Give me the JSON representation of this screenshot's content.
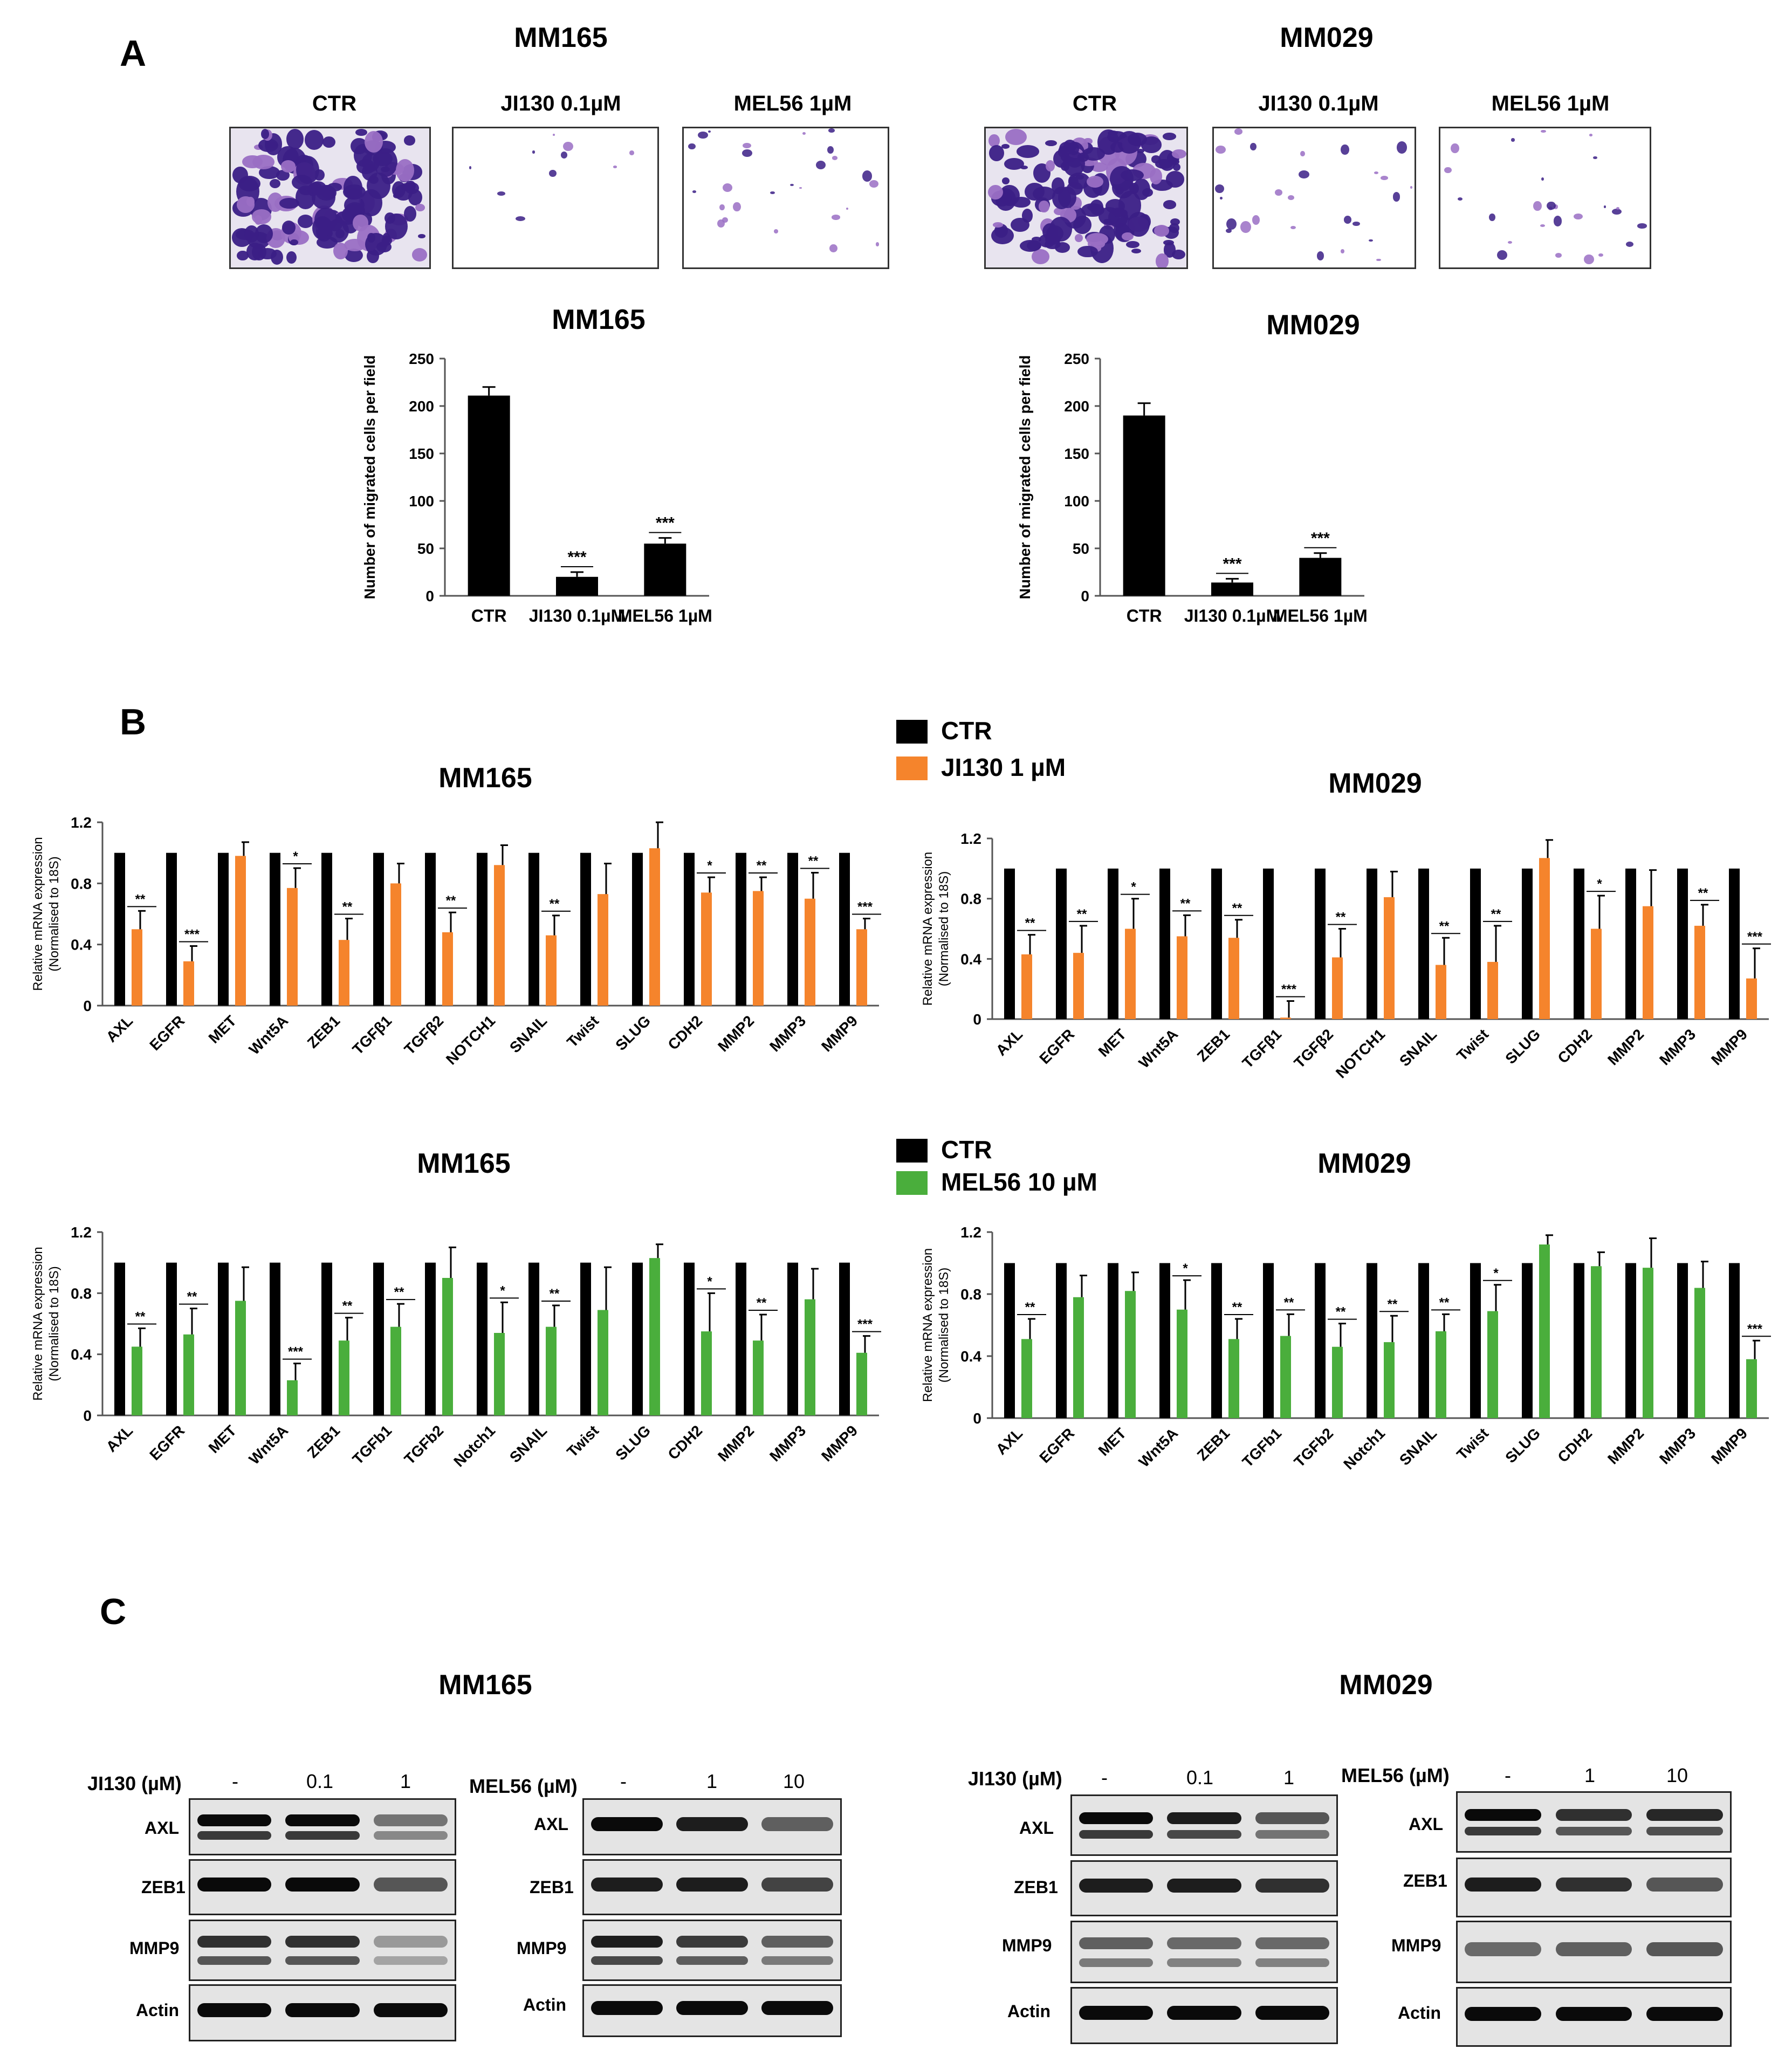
{
  "panel_letters": [
    "A",
    "B",
    "C"
  ],
  "colors": {
    "ctr": "#000000",
    "ji130": "#f5842c",
    "mel56": "#4aae3c",
    "stain": "#3b1f86",
    "stain_light": "#9a6fc4"
  },
  "panel_a": {
    "left": {
      "title": "MM165",
      "images": [
        "CTR",
        "JI130 0.1µM",
        "MEL56 1µM"
      ]
    },
    "right": {
      "title": "MM029",
      "images": [
        "CTR",
        "JI130 0.1µM",
        "MEL56 1µM"
      ]
    }
  },
  "panel_b": {
    "legend1": {
      "ctr": "CTR",
      "treat": "JI130 1 µM"
    },
    "legend2": {
      "ctr": "CTR",
      "treat": "MEL56 10 µM"
    }
  },
  "panel_c": {
    "left": {
      "title": "MM165"
    },
    "right": {
      "title": "MM029"
    },
    "row_labels": [
      "AXL",
      "ZEB1",
      "MMP9",
      "Actin"
    ],
    "ji130_label": "JI130 (µM)",
    "mel56_label": "MEL56 (µM)",
    "ji130_doses": [
      "-",
      "0.1",
      "1"
    ],
    "mel56_doses": [
      "-",
      "1",
      "10"
    ]
  },
  "chart_data": [
    {
      "id": "A1",
      "type": "bar",
      "title": "MM165",
      "categories": [
        "CTR",
        "JI130 0.1µM",
        "MEL56 1µM"
      ],
      "values": [
        211,
        20,
        55
      ],
      "errors": [
        9,
        5,
        6
      ],
      "sig": [
        "",
        "***",
        "***"
      ],
      "ylabel": "Number of migrated cells per field",
      "ylim": [
        0,
        250
      ],
      "yticks": [
        "0",
        "50",
        "100",
        "150",
        "200",
        "250"
      ]
    },
    {
      "id": "A2",
      "type": "bar",
      "title": "MM029",
      "categories": [
        "CTR",
        "JI130 0.1µM",
        "MEL56 1µM"
      ],
      "values": [
        190,
        14,
        40
      ],
      "errors": [
        13,
        4,
        5
      ],
      "sig": [
        "",
        "***",
        "***"
      ],
      "ylabel": "Number of migrated cells per field",
      "ylim": [
        0,
        250
      ],
      "yticks": [
        "0",
        "50",
        "100",
        "150",
        "200",
        "250"
      ]
    },
    {
      "id": "B1",
      "type": "bar",
      "title": "MM165",
      "categories": [
        "AXL",
        "EGFR",
        "MET",
        "Wnt5A",
        "ZEB1",
        "TGFβ1",
        "TGFβ2",
        "NOTCH1",
        "SNAIL",
        "Twist",
        "SLUG",
        "CDH2",
        "MMP2",
        "MMP3",
        "MMP9"
      ],
      "series": [
        {
          "name": "CTR",
          "values": [
            1,
            1,
            1,
            1,
            1,
            1,
            1,
            1,
            1,
            1,
            1,
            1,
            1,
            1,
            1
          ]
        },
        {
          "name": "JI130 1 µM",
          "values": [
            0.5,
            0.29,
            0.98,
            0.77,
            0.43,
            0.8,
            0.48,
            0.92,
            0.46,
            0.73,
            1.03,
            0.74,
            0.75,
            0.7,
            0.5
          ],
          "errors": [
            0.12,
            0.1,
            0.09,
            0.13,
            0.14,
            0.13,
            0.13,
            0.13,
            0.13,
            0.2,
            0.17,
            0.1,
            0.09,
            0.17,
            0.07
          ]
        }
      ],
      "sig": [
        "**",
        "***",
        "",
        "*",
        "**",
        "",
        "**",
        "",
        "**",
        "",
        "",
        "*",
        "**",
        "**",
        "***"
      ],
      "ylabel": "Relative mRNA expression (Normalised to 18S)",
      "ylim": [
        0,
        1.2
      ],
      "yticks": [
        "0",
        "0.4",
        "0.8",
        "1.2"
      ]
    },
    {
      "id": "B2",
      "type": "bar",
      "title": "MM029",
      "categories": [
        "AXL",
        "EGFR",
        "MET",
        "Wnt5A",
        "ZEB1",
        "TGFβ1",
        "TGFβ2",
        "NOTCH1",
        "SNAIL",
        "Twist",
        "SLUG",
        "CDH2",
        "MMP2",
        "MMP3",
        "MMP9"
      ],
      "series": [
        {
          "name": "CTR",
          "values": [
            1,
            1,
            1,
            1,
            1,
            1,
            1,
            1,
            1,
            1,
            1,
            1,
            1,
            1,
            1
          ]
        },
        {
          "name": "JI130 1 µM",
          "values": [
            0.43,
            0.44,
            0.6,
            0.55,
            0.54,
            0.01,
            0.41,
            0.81,
            0.36,
            0.38,
            1.07,
            0.6,
            0.75,
            0.62,
            0.27
          ],
          "errors": [
            0.13,
            0.18,
            0.2,
            0.14,
            0.12,
            0.11,
            0.19,
            0.17,
            0.18,
            0.24,
            0.12,
            0.22,
            0.24,
            0.14,
            0.2
          ]
        }
      ],
      "sig": [
        "**",
        "**",
        "*",
        "**",
        "**",
        "***",
        "**",
        "",
        "**",
        "**",
        "",
        "*",
        "",
        "**",
        "***"
      ],
      "ylabel": "Relative mRNA expression (Normalised to 18S)",
      "ylim": [
        0,
        1.2
      ],
      "yticks": [
        "0",
        "0.4",
        "0.8",
        "1.2"
      ]
    },
    {
      "id": "B3",
      "type": "bar",
      "title": "MM165",
      "categories": [
        "AXL",
        "EGFR",
        "MET",
        "Wnt5A",
        "ZEB1",
        "TGFb1",
        "TGFb2",
        "Notch1",
        "SNAIL",
        "Twist",
        "SLUG",
        "CDH2",
        "MMP2",
        "MMP3",
        "MMP9"
      ],
      "series": [
        {
          "name": "CTR",
          "values": [
            1,
            1,
            1,
            1,
            1,
            1,
            1,
            1,
            1,
            1,
            1,
            1,
            1,
            1,
            1
          ]
        },
        {
          "name": "MEL56 10 µM",
          "values": [
            0.45,
            0.53,
            0.75,
            0.23,
            0.49,
            0.58,
            0.9,
            0.54,
            0.58,
            0.69,
            1.03,
            0.55,
            0.49,
            0.76,
            0.41
          ],
          "errors": [
            0.12,
            0.17,
            0.22,
            0.11,
            0.15,
            0.15,
            0.2,
            0.2,
            0.14,
            0.28,
            0.09,
            0.25,
            0.17,
            0.2,
            0.11
          ]
        }
      ],
      "sig": [
        "**",
        "**",
        "",
        "***",
        "**",
        "**",
        "",
        "*",
        "**",
        "",
        "",
        "*",
        "**",
        "",
        "***"
      ],
      "ylabel": "Relative mRNA expression (Normalised to 18S)",
      "ylim": [
        0,
        1.2
      ],
      "yticks": [
        "0",
        "0.4",
        "0.8",
        "1.2"
      ]
    },
    {
      "id": "B4",
      "type": "bar",
      "title": "MM029",
      "categories": [
        "AXL",
        "EGFR",
        "MET",
        "Wnt5A",
        "ZEB1",
        "TGFb1",
        "TGFb2",
        "Notch1",
        "SNAIL",
        "Twist",
        "SLUG",
        "CDH2",
        "MMP2",
        "MMP3",
        "MMP9"
      ],
      "series": [
        {
          "name": "CTR",
          "values": [
            1,
            1,
            1,
            1,
            1,
            1,
            1,
            1,
            1,
            1,
            1,
            1,
            1,
            1,
            1
          ]
        },
        {
          "name": "MEL56 10 µM",
          "values": [
            0.51,
            0.78,
            0.82,
            0.7,
            0.51,
            0.53,
            0.46,
            0.49,
            0.56,
            0.69,
            1.12,
            0.98,
            0.97,
            0.84,
            0.38
          ],
          "errors": [
            0.13,
            0.14,
            0.12,
            0.19,
            0.13,
            0.14,
            0.15,
            0.17,
            0.11,
            0.17,
            0.06,
            0.09,
            0.19,
            0.17,
            0.12
          ]
        }
      ],
      "sig": [
        "**",
        "",
        "",
        "*",
        "**",
        "**",
        "**",
        "**",
        "**",
        "*",
        "",
        "",
        "",
        "",
        "***"
      ],
      "ylabel": "Relative mRNA expression (Normalised to 18S)",
      "ylim": [
        0,
        1.2
      ],
      "yticks": [
        "0",
        "0.4",
        "0.8",
        "1.2"
      ]
    }
  ]
}
